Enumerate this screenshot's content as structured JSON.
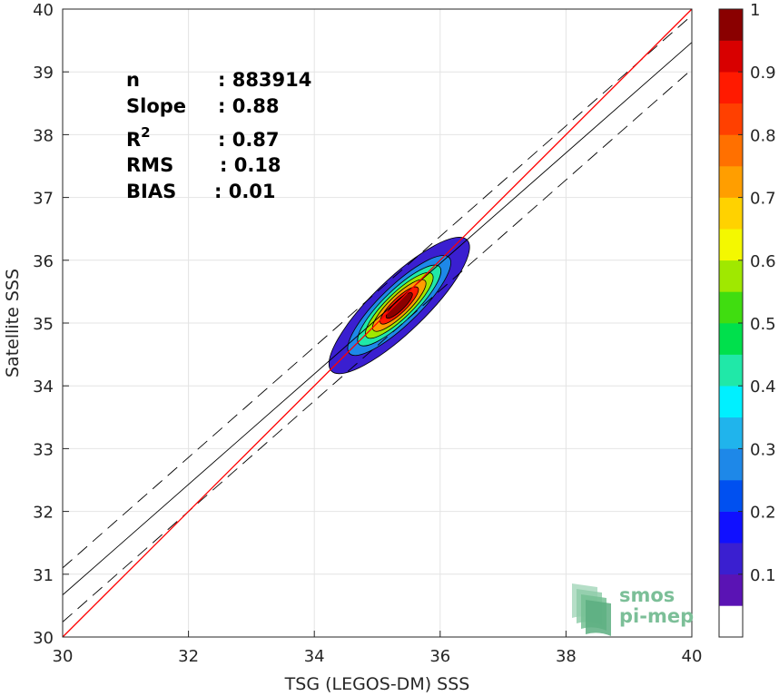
{
  "chart_data": {
    "type": "density-scatter",
    "xlabel": "TSG (LEGOS-DM) SSS",
    "ylabel": "Satellite SSS",
    "xlim": [
      30,
      40
    ],
    "ylim": [
      30,
      40
    ],
    "xticks": [
      30,
      32,
      34,
      36,
      38,
      40
    ],
    "yticks": [
      30,
      31,
      32,
      33,
      34,
      35,
      36,
      37,
      38,
      39,
      40
    ],
    "grid": true,
    "stats": [
      {
        "label": "n",
        "value": ": 883914"
      },
      {
        "label": "Slope",
        "value": ": 0.88"
      },
      {
        "label": "R",
        "superscript": "2",
        "value": ": 0.87"
      },
      {
        "label": "RMS",
        "value": ": 0.18"
      },
      {
        "label": "BIAS",
        "value": ": 0.01"
      }
    ],
    "reference_line": {
      "slope": 1,
      "intercept": 0,
      "color": "#ff0000"
    },
    "fit_line": {
      "slope": 0.88,
      "intercept": 4.27,
      "color": "#000000"
    },
    "fit_envelope": {
      "offset": 0.43,
      "style": "dashed",
      "color": "#000000"
    },
    "density": {
      "center": [
        35.35,
        35.28
      ],
      "orientation_deg": 44,
      "semi_major": 1.5,
      "semi_minor": 0.42,
      "levels": [
        0.05,
        0.2,
        0.35,
        0.5,
        0.65,
        0.8,
        0.9
      ]
    },
    "colorbar": {
      "min": 0,
      "max": 1,
      "ticks": [
        "0.1",
        "0.2",
        "0.3",
        "0.4",
        "0.5",
        "0.6",
        "0.7",
        "0.8",
        "0.9",
        "1"
      ],
      "colors": [
        "#ffffff",
        "#5a13b4",
        "#3a1fd0",
        "#1010ff",
        "#0050f0",
        "#1e88e8",
        "#20b4ec",
        "#00f0ff",
        "#20e8a8",
        "#00e04c",
        "#40dd10",
        "#a0e800",
        "#f4f800",
        "#ffd200",
        "#ff9e00",
        "#ff7000",
        "#ff4000",
        "#ff1a00",
        "#d80000",
        "#8a0000"
      ]
    }
  },
  "watermark": {
    "line1": "smos",
    "line2": "pi-mep"
  }
}
